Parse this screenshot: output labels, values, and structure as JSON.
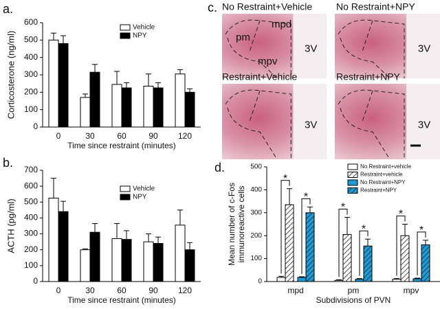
{
  "chart_data": [
    {
      "type": "bar",
      "panel": "a.",
      "ylabel": "Corticosterone (ng/ml)",
      "xlabel": "Time since restraint (minutes)",
      "categories": [
        "0",
        "30",
        "60",
        "90",
        "120"
      ],
      "series": [
        {
          "name": "Vehicle",
          "color": "#ffffff",
          "values": [
            500,
            170,
            245,
            235,
            305
          ],
          "errors": [
            40,
            20,
            75,
            70,
            25
          ]
        },
        {
          "name": "NPY",
          "color": "#000000",
          "values": [
            480,
            315,
            225,
            225,
            200
          ],
          "errors": [
            45,
            45,
            30,
            30,
            20
          ]
        }
      ],
      "ylim": [
        0,
        600
      ],
      "yticks": [
        0,
        100,
        200,
        300,
        400,
        500,
        600
      ]
    },
    {
      "type": "bar",
      "panel": "b.",
      "ylabel": "ACTH (pg/ml)",
      "xlabel": "Time since restraint (minutes)",
      "categories": [
        "0",
        "30",
        "60",
        "90",
        "120"
      ],
      "series": [
        {
          "name": "Vehicle",
          "color": "#ffffff",
          "values": [
            525,
            200,
            270,
            250,
            355
          ],
          "errors": [
            125,
            5,
            95,
            50,
            95
          ]
        },
        {
          "name": "NPY",
          "color": "#000000",
          "values": [
            440,
            310,
            265,
            240,
            200
          ],
          "errors": [
            65,
            55,
            55,
            40,
            45
          ]
        }
      ],
      "ylim": [
        0,
        700
      ],
      "yticks": [
        0,
        100,
        200,
        300,
        400,
        500,
        600,
        700
      ]
    },
    {
      "type": "bar",
      "panel": "d.",
      "ylabel": [
        "Mean number of c-Fos",
        "immunoreactive cells"
      ],
      "xlabel": "Subdivisions of PVN",
      "categories": [
        "mpd",
        "pm",
        "mpv"
      ],
      "series": [
        {
          "name": "No Restraint+vehicle",
          "color": "#ffffff",
          "hatch": false,
          "values": [
            18,
            5,
            10
          ],
          "errors": [
            5,
            3,
            3
          ]
        },
        {
          "name": "Restraint+vehicle",
          "color": "#ffffff",
          "hatch": true,
          "values": [
            335,
            205,
            200
          ],
          "errors": [
            70,
            75,
            50
          ]
        },
        {
          "name": "No Restraint+NPY",
          "color": "#1e9bd7",
          "hatch": false,
          "values": [
            18,
            10,
            12
          ],
          "errors": [
            3,
            3,
            3
          ]
        },
        {
          "name": "Restraint+NPY",
          "color": "#1e9bd7",
          "hatch": true,
          "values": [
            300,
            155,
            160
          ],
          "errors": [
            25,
            30,
            20
          ]
        }
      ],
      "annotations": [
        "*",
        "*",
        "*",
        "*",
        "*",
        "*"
      ],
      "ylim": [
        0,
        500
      ],
      "yticks": [
        0,
        100,
        200,
        300,
        400,
        500
      ]
    }
  ],
  "histology": {
    "panel": "c.",
    "images": [
      {
        "title": "No Restraint+Vehicle",
        "regions": [
          "pm",
          "mpd",
          "mpv"
        ],
        "ventricle": "3V"
      },
      {
        "title": "No Restraint+NPY",
        "ventricle": "3V"
      },
      {
        "title": "Restraint+Vehicle",
        "ventricle": "3V"
      },
      {
        "title": "Restraint+NPY",
        "ventricle": "3V"
      }
    ]
  }
}
